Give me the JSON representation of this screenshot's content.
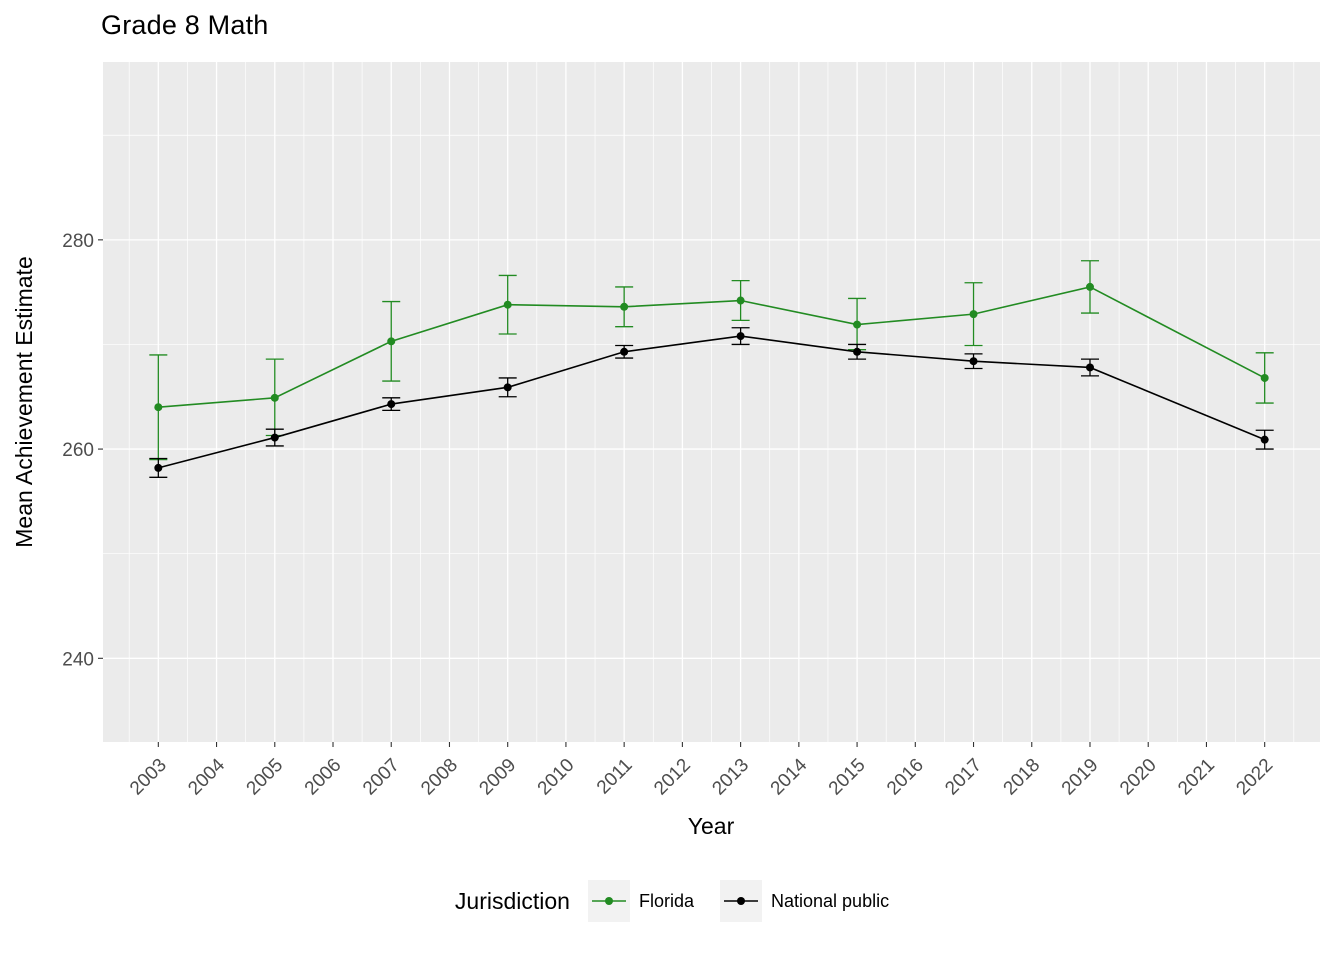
{
  "chart_data": {
    "type": "line",
    "title": "Grade 8 Math",
    "xlabel": "Year",
    "ylabel": "Mean Achievement Estimate",
    "legend_title": "Jurisdiction",
    "legend_position": "bottom",
    "grid": true,
    "panel_background": "#EBEBEB",
    "grid_major_color": "#FFFFFF",
    "grid_minor_color": "#FFFFFF",
    "axis_text_color": "#4D4D4D",
    "tick_mark_color": "#333333",
    "legend_key_background": "#F2F2F2",
    "x_ticks": [
      2003,
      2004,
      2005,
      2006,
      2007,
      2008,
      2009,
      2010,
      2011,
      2012,
      2013,
      2014,
      2015,
      2016,
      2017,
      2018,
      2019,
      2020,
      2021,
      2022
    ],
    "x_tick_angle": 45,
    "xlim": [
      2002.05,
      2022.95
    ],
    "y_ticks": [
      240,
      260,
      280
    ],
    "ylim": [
      232,
      297
    ],
    "series": [
      {
        "name": "Florida",
        "color": "#228B22",
        "x": [
          2003,
          2005,
          2007,
          2009,
          2011,
          2013,
          2015,
          2017,
          2019,
          2022
        ],
        "y": [
          264.0,
          264.9,
          270.3,
          273.8,
          273.6,
          274.2,
          271.9,
          272.9,
          275.5,
          266.8
        ],
        "y_low": [
          259.0,
          261.3,
          266.5,
          271.0,
          271.7,
          272.3,
          269.5,
          269.9,
          273.0,
          264.4
        ],
        "y_high": [
          269.0,
          268.6,
          274.1,
          276.6,
          275.5,
          276.1,
          274.4,
          275.9,
          278.0,
          269.2
        ]
      },
      {
        "name": "National public",
        "color": "#000000",
        "x": [
          2003,
          2005,
          2007,
          2009,
          2011,
          2013,
          2015,
          2017,
          2019,
          2022
        ],
        "y": [
          258.2,
          261.1,
          264.3,
          265.9,
          269.3,
          270.8,
          269.3,
          268.4,
          267.8,
          260.9
        ],
        "y_low": [
          257.3,
          260.3,
          263.7,
          265.0,
          268.7,
          270.0,
          268.6,
          267.7,
          267.0,
          260.0
        ],
        "y_high": [
          259.1,
          261.9,
          264.9,
          266.8,
          269.9,
          271.6,
          270.0,
          269.1,
          268.6,
          261.8
        ]
      }
    ]
  }
}
